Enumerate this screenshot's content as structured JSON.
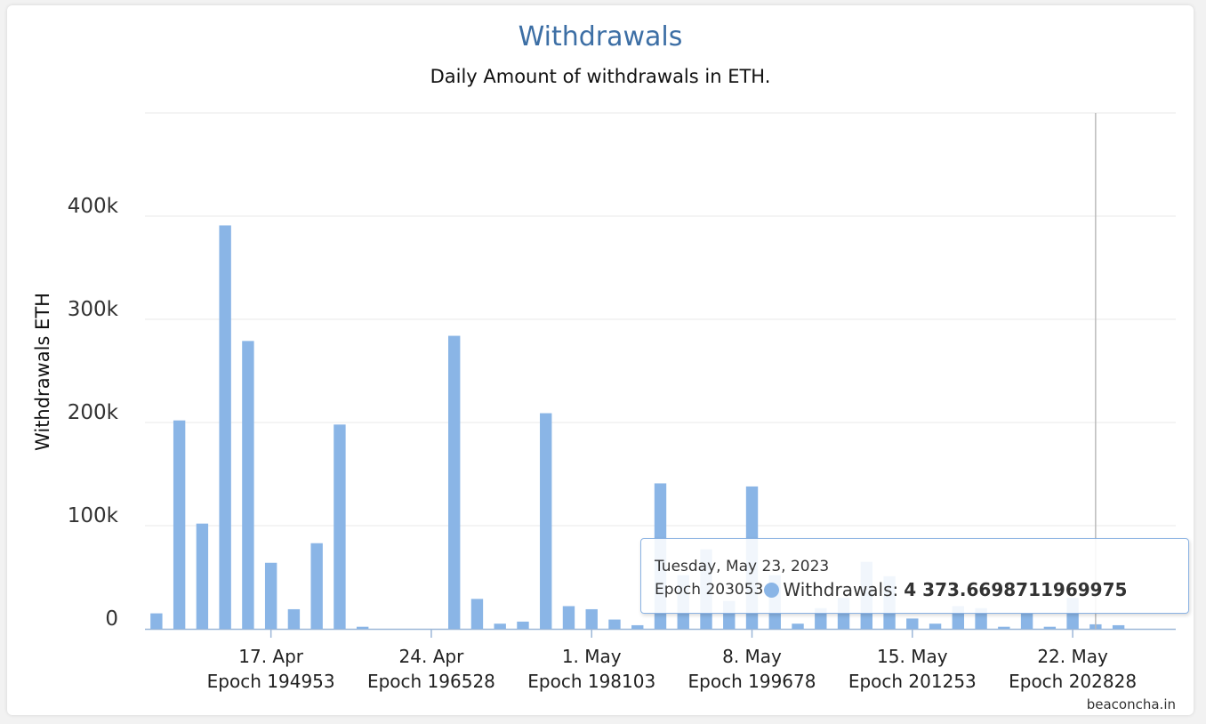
{
  "chart_data": {
    "type": "bar",
    "title": "Withdrawals",
    "subtitle": "Daily Amount of withdrawals in ETH.",
    "ylabel": "Withdrawals ETH",
    "ylim": [
      0,
      500000
    ],
    "yticks": [
      {
        "value": 0,
        "label": "0"
      },
      {
        "value": 100000,
        "label": "100k"
      },
      {
        "value": 200000,
        "label": "200k"
      },
      {
        "value": 300000,
        "label": "300k"
      },
      {
        "value": 400000,
        "label": "400k"
      }
    ],
    "x_start": "2023-04-12",
    "x_end": "2023-05-27",
    "xticks": [
      {
        "date": "2023-04-17",
        "label": "17. Apr",
        "epoch": "Epoch 194953"
      },
      {
        "date": "2023-04-24",
        "label": "24. Apr",
        "epoch": "Epoch 196528"
      },
      {
        "date": "2023-05-01",
        "label": "1. May",
        "epoch": "Epoch 198103"
      },
      {
        "date": "2023-05-08",
        "label": "8. May",
        "epoch": "Epoch 199678"
      },
      {
        "date": "2023-05-15",
        "label": "15. May",
        "epoch": "Epoch 201253"
      },
      {
        "date": "2023-05-22",
        "label": "22. May",
        "epoch": "Epoch 202828"
      }
    ],
    "series": [
      {
        "name": "Withdrawals",
        "color": "#8ab5e6",
        "dates": [
          "2023-04-12",
          "2023-04-13",
          "2023-04-14",
          "2023-04-15",
          "2023-04-16",
          "2023-04-17",
          "2023-04-18",
          "2023-04-19",
          "2023-04-20",
          "2023-04-21",
          "2023-04-22",
          "2023-04-23",
          "2023-04-24",
          "2023-04-25",
          "2023-04-26",
          "2023-04-27",
          "2023-04-28",
          "2023-04-29",
          "2023-04-30",
          "2023-05-01",
          "2023-05-02",
          "2023-05-03",
          "2023-05-04",
          "2023-05-05",
          "2023-05-06",
          "2023-05-07",
          "2023-05-08",
          "2023-05-09",
          "2023-05-10",
          "2023-05-11",
          "2023-05-12",
          "2023-05-13",
          "2023-05-14",
          "2023-05-15",
          "2023-05-16",
          "2023-05-17",
          "2023-05-18",
          "2023-05-19",
          "2023-05-20",
          "2023-05-21",
          "2023-05-22",
          "2023-05-23",
          "2023-05-24"
        ],
        "values": [
          15000,
          202000,
          102000,
          391000,
          279000,
          64000,
          19000,
          83000,
          198000,
          2000,
          0,
          0,
          0,
          284000,
          29000,
          5000,
          7000,
          209000,
          22000,
          19000,
          9000,
          3500,
          141000,
          52000,
          77000,
          27000,
          138000,
          52000,
          5000,
          20000,
          30000,
          65000,
          51000,
          10000,
          5000,
          22000,
          20000,
          2000,
          15000,
          2000,
          30000,
          4373.6698711969975,
          3500
        ]
      }
    ],
    "hover_date": "2023-05-23",
    "grid": true,
    "legend": "none"
  },
  "tooltip": {
    "date": "Tuesday, May 23, 2023",
    "epoch": "Epoch 203053",
    "series_name": "Withdrawals:",
    "value_text": "4 373.6698711969975"
  },
  "credit": "beaconcha.in"
}
